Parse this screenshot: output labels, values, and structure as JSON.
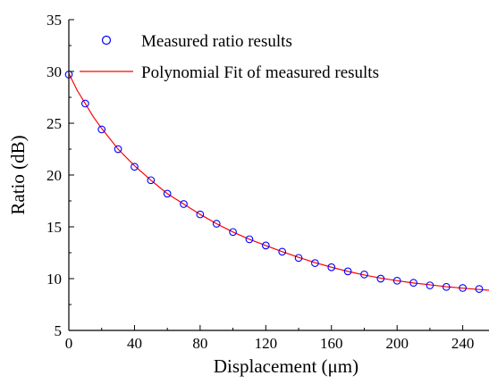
{
  "chart_data": {
    "type": "scatter",
    "xlabel": "Displacement (μm)",
    "ylabel": "Ratio (dB)",
    "xlim": [
      0,
      256
    ],
    "ylim": [
      5,
      35
    ],
    "x_ticks": [
      0,
      40,
      80,
      120,
      160,
      200,
      240
    ],
    "y_ticks": [
      5,
      10,
      15,
      20,
      25,
      30,
      35
    ],
    "x_tick_labels": [
      "0",
      "40",
      "80",
      "120",
      "160",
      "200",
      "240"
    ],
    "y_tick_labels": [
      "5",
      "10",
      "15",
      "20",
      "25",
      "30",
      "35"
    ],
    "grid": false,
    "legend_position": "top",
    "series": [
      {
        "name": "Measured ratio results",
        "kind": "markers",
        "marker": "open-circle",
        "color": "#0000ff",
        "x": [
          0,
          10,
          20,
          30,
          40,
          50,
          60,
          70,
          80,
          90,
          100,
          110,
          120,
          130,
          140,
          150,
          160,
          170,
          180,
          190,
          200,
          210,
          220,
          230,
          240,
          250
        ],
        "y": [
          29.7,
          26.9,
          24.4,
          22.5,
          20.8,
          19.5,
          18.2,
          17.2,
          16.2,
          15.3,
          14.5,
          13.8,
          13.2,
          12.6,
          12.0,
          11.5,
          11.1,
          10.7,
          10.4,
          10.0,
          9.8,
          9.6,
          9.35,
          9.2,
          9.1,
          9.0
        ]
      },
      {
        "name": "Polynomial Fit of measured results",
        "kind": "line",
        "color": "#ff0000",
        "x": [
          0,
          5,
          10,
          15,
          20,
          30,
          40,
          50,
          60,
          70,
          80,
          90,
          100,
          110,
          120,
          130,
          140,
          150,
          160,
          170,
          180,
          190,
          200,
          210,
          220,
          230,
          240,
          250,
          256
        ],
        "y": [
          29.8,
          28.2,
          26.9,
          25.6,
          24.5,
          22.5,
          20.9,
          19.5,
          18.2,
          17.2,
          16.2,
          15.3,
          14.5,
          13.8,
          13.2,
          12.6,
          12.05,
          11.55,
          11.1,
          10.7,
          10.35,
          10.05,
          9.8,
          9.58,
          9.4,
          9.22,
          9.08,
          8.95,
          8.88
        ]
      }
    ]
  }
}
